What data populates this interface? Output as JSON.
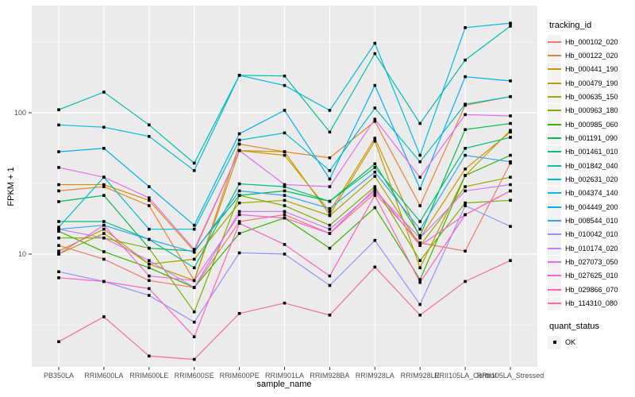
{
  "figure": {
    "xlabel": "sample_name",
    "ylabel": "FPKM + 1",
    "legend_title": "tracking_id",
    "quant_legend": {
      "title": "quant_status",
      "items": [
        {
          "label": "OK"
        }
      ]
    },
    "colors": {
      "panel_bg": "#EBEBEB",
      "grid": "#FFFFFF",
      "tick_label": "#4D4D4D",
      "tick_mark": "#333333",
      "axis_title": "#000000",
      "legend_key_bg": "#F2F2F2",
      "point": "#000000"
    }
  },
  "chart_data": {
    "type": "line",
    "title": "",
    "xlabel": "sample_name",
    "ylabel": "FPKM + 1",
    "yscale": "log10",
    "grid": true,
    "legend_position": "right",
    "legend_title": "tracking_id",
    "quant_status_values": [
      "OK"
    ],
    "yticks": [
      10,
      100
    ],
    "ytick_labels": [
      "10",
      "100"
    ],
    "minor_gridlines": [
      3.162,
      31.623,
      316.23
    ],
    "ylim": [
      1.55,
      575
    ],
    "point_shape": "filled-square",
    "categories": [
      "PB350LA",
      "RRIM600LA",
      "RRIM600LE",
      "RRIM600SE",
      "RRIM600PE",
      "RRIM901LA",
      "RRIM928BA",
      "RRIM928LA",
      "RRIM928LE",
      "RRII105LA_Control",
      "RRII105LA_Stressed"
    ],
    "series": [
      {
        "name": "Hb_000102_020",
        "color": "#F8766D",
        "values": [
          11.5,
          9.2,
          6.5,
          5.8,
          17,
          19,
          14,
          27,
          12,
          10.5,
          44
        ]
      },
      {
        "name": "Hb_000122_020",
        "color": "#EA8331",
        "values": [
          28,
          30,
          22,
          6.5,
          60,
          53,
          48,
          87,
          22,
          113,
          130
        ]
      },
      {
        "name": "Hb_000441_190",
        "color": "#D89000",
        "values": [
          31,
          31,
          24,
          10.5,
          54,
          50,
          20,
          66,
          13,
          40,
          73
        ]
      },
      {
        "name": "Hb_000479_190",
        "color": "#C09B00",
        "values": [
          10.5,
          15,
          8.5,
          6.5,
          54,
          53,
          19,
          63,
          8,
          36,
          75
        ]
      },
      {
        "name": "Hb_000635_150",
        "color": "#A3A500",
        "values": [
          10,
          14,
          8.5,
          9.2,
          23,
          24,
          18.7,
          35.5,
          11.5,
          30,
          35
        ]
      },
      {
        "name": "Hb_000963_180",
        "color": "#7CAE00",
        "values": [
          13,
          13,
          11,
          3.9,
          26,
          22,
          16,
          30,
          9,
          23,
          24
        ]
      },
      {
        "name": "Hb_000985_060",
        "color": "#39B600",
        "values": [
          14.5,
          10.4,
          8,
          5.8,
          14,
          18,
          11,
          21.3,
          6.6,
          36,
          50
        ]
      },
      {
        "name": "Hb_001191_090",
        "color": "#00BB4E",
        "values": [
          23.5,
          26,
          11,
          10.5,
          26,
          28,
          23.6,
          43.5,
          13.5,
          76,
          84
        ]
      },
      {
        "name": "Hb_001461_010",
        "color": "#00BF7D",
        "values": [
          17,
          17,
          12.7,
          8,
          31.4,
          30,
          23.6,
          41,
          17,
          56,
          67
        ]
      },
      {
        "name": "Hb_001842_040",
        "color": "#00C1A3",
        "values": [
          105,
          140,
          82,
          44,
          184,
          182,
          73,
          262,
          84,
          236,
          410
        ]
      },
      {
        "name": "Hb_002631_020",
        "color": "#00BFC4",
        "values": [
          15.5,
          35,
          15,
          15,
          64,
          72,
          39,
          108,
          45,
          115,
          130
        ]
      },
      {
        "name": "Hb_004374_140",
        "color": "#00BAE0",
        "values": [
          82,
          79,
          68,
          39,
          184,
          156,
          104,
          310,
          50,
          400,
          430
        ]
      },
      {
        "name": "Hb_004449_200",
        "color": "#00B0F6",
        "values": [
          53,
          56,
          30,
          16,
          71,
          104,
          34,
          156,
          29,
          180,
          168
        ]
      },
      {
        "name": "Hb_008544_010",
        "color": "#35A2FF",
        "values": [
          15,
          16,
          12.7,
          10.3,
          28,
          26,
          21,
          38,
          15,
          50,
          45
        ]
      },
      {
        "name": "Hb_010042_010",
        "color": "#9590FF",
        "values": [
          7.5,
          6.4,
          5.1,
          3.3,
          10.2,
          10,
          6,
          12.5,
          4.4,
          22,
          15.7
        ]
      },
      {
        "name": "Hb_010174_020",
        "color": "#C77CFF",
        "values": [
          15,
          13,
          9,
          5.8,
          20,
          20,
          15,
          28,
          13,
          28,
          31
        ]
      },
      {
        "name": "Hb_027073_050",
        "color": "#E76BF3",
        "values": [
          41,
          35,
          25,
          10.8,
          54,
          31,
          30,
          90,
          35,
          97,
          95
        ]
      },
      {
        "name": "Hb_027625_010",
        "color": "#FA62DB",
        "values": [
          10,
          16,
          7,
          6.5,
          19,
          18,
          14,
          29,
          11.5,
          19,
          28
        ]
      },
      {
        "name": "Hb_029866_070",
        "color": "#FF62BC",
        "values": [
          6.8,
          6.4,
          5.7,
          2.6,
          16.5,
          11.7,
          7,
          26,
          6.3,
          19,
          28
        ]
      },
      {
        "name": "Hb_114310_080",
        "color": "#FF6A98",
        "values": [
          2.4,
          3.6,
          1.9,
          1.8,
          3.8,
          4.5,
          3.7,
          8.1,
          3.7,
          6.4,
          9
        ]
      }
    ]
  }
}
